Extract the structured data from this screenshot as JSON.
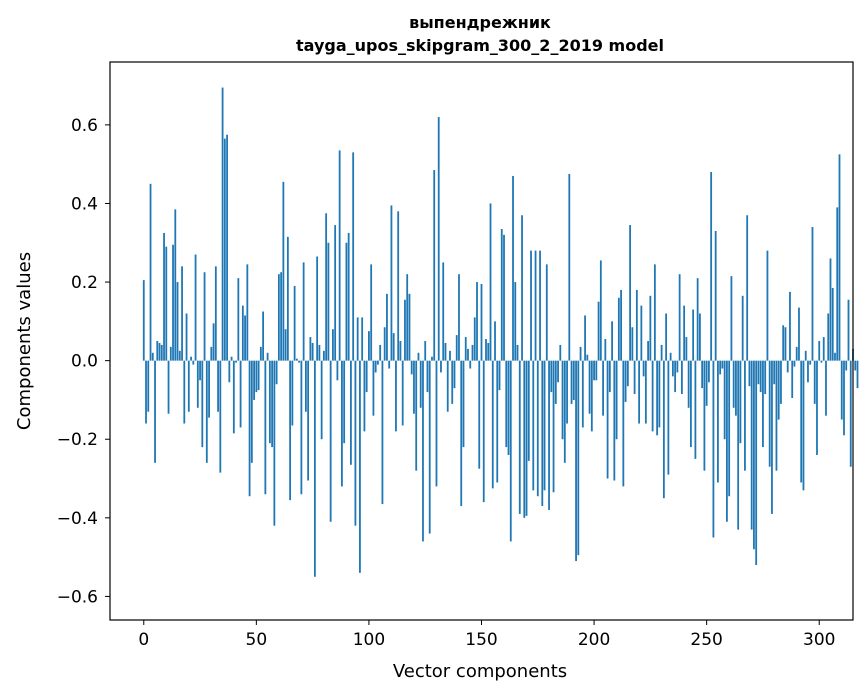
{
  "chart_data": {
    "type": "bar",
    "title_line1": "выпендрежник",
    "title_line2": "tayga_upos_skipgram_300_2_2019 model",
    "xlabel": "Vector components",
    "ylabel": "Components values",
    "xlim": [
      -15,
      315
    ],
    "ylim": [
      -0.66,
      0.76
    ],
    "xticks": [
      0,
      50,
      100,
      150,
      200,
      250,
      300
    ],
    "xtick_labels": [
      "0",
      "50",
      "100",
      "150",
      "200",
      "250",
      "300"
    ],
    "yticks": [
      -0.6,
      -0.4,
      -0.2,
      0.0,
      0.2,
      0.4,
      0.6
    ],
    "ytick_labels": [
      "−0.6",
      "−0.4",
      "−0.2",
      "0.0",
      "0.2",
      "0.4",
      "0.6"
    ],
    "bar_color": "#1f77b4",
    "values": [
      0.205,
      -0.16,
      -0.13,
      0.45,
      0.02,
      -0.26,
      0.05,
      0.045,
      0.04,
      0.325,
      0.29,
      -0.135,
      0.035,
      0.295,
      0.385,
      0.2,
      0.025,
      0.24,
      -0.16,
      0.12,
      -0.13,
      0.01,
      -0.01,
      0.27,
      -0.12,
      -0.05,
      -0.22,
      0.225,
      -0.26,
      -0.145,
      0.035,
      0.095,
      0.24,
      -0.13,
      -0.285,
      0.695,
      0.565,
      0.575,
      -0.055,
      0.01,
      -0.185,
      -0.005,
      0.21,
      -0.17,
      0.14,
      0.115,
      0.245,
      -0.345,
      -0.26,
      -0.1,
      -0.08,
      -0.075,
      0.035,
      0.125,
      -0.34,
      0.02,
      -0.21,
      -0.22,
      -0.42,
      -0.06,
      0.22,
      0.225,
      0.455,
      0.08,
      0.315,
      -0.355,
      -0.165,
      0.19,
      0.005,
      -0.005,
      -0.34,
      0.25,
      -0.13,
      -0.305,
      0.06,
      0.045,
      -0.55,
      0.265,
      0.04,
      -0.2,
      0.025,
      0.375,
      0.3,
      -0.41,
      0.08,
      0.345,
      -0.05,
      0.535,
      -0.32,
      -0.21,
      0.3,
      0.325,
      -0.265,
      0.53,
      -0.42,
      0.11,
      -0.54,
      0.11,
      -0.18,
      -0.08,
      0.075,
      0.245,
      -0.14,
      -0.03,
      -0.01,
      0.04,
      -0.365,
      0.085,
      0.17,
      -0.02,
      0.395,
      0.07,
      -0.18,
      0.38,
      0.05,
      -0.165,
      0.155,
      0.22,
      0.17,
      -0.035,
      -0.135,
      -0.28,
      0.02,
      -0.12,
      -0.46,
      0.05,
      -0.08,
      -0.44,
      0.01,
      0.485,
      -0.32,
      0.62,
      -0.03,
      0.25,
      0.045,
      -0.13,
      0.025,
      -0.11,
      -0.07,
      0.065,
      0.22,
      -0.37,
      -0.22,
      0.06,
      0.03,
      -0.02,
      0.04,
      0.11,
      0.2,
      -0.275,
      0.195,
      -0.36,
      0.055,
      0.045,
      0.4,
      -0.325,
      0.1,
      -0.31,
      -0.075,
      0.335,
      0.32,
      -0.22,
      -0.24,
      -0.46,
      0.47,
      0.2,
      0.04,
      -0.39,
      0.37,
      -0.4,
      -0.395,
      -0.255,
      0.28,
      -0.33,
      0.28,
      -0.345,
      0.28,
      -0.37,
      -0.33,
      0.245,
      -0.38,
      -0.08,
      -0.335,
      -0.11,
      -0.055,
      0.04,
      -0.2,
      -0.26,
      -0.16,
      0.475,
      -0.11,
      -0.1,
      -0.51,
      -0.495,
      0.035,
      -0.17,
      0.115,
      0.015,
      -0.135,
      -0.18,
      -0.05,
      -0.05,
      0.15,
      0.255,
      -0.14,
      0.055,
      -0.3,
      -0.08,
      0.1,
      -0.305,
      -0.2,
      0.16,
      0.18,
      -0.32,
      -0.105,
      -0.065,
      0.345,
      0.085,
      -0.085,
      0.18,
      -0.16,
      0.14,
      -0.04,
      -0.16,
      0.05,
      0.165,
      -0.18,
      0.245,
      -0.19,
      -0.17,
      0.04,
      -0.35,
      0.12,
      -0.29,
      0.02,
      -0.04,
      -0.08,
      -0.03,
      0.22,
      -0.085,
      0.14,
      0.06,
      -0.12,
      -0.22,
      0.13,
      -0.25,
      0.21,
      0.12,
      -0.07,
      -0.28,
      -0.115,
      -0.055,
      0.48,
      -0.45,
      0.33,
      -0.31,
      -0.035,
      -0.02,
      -0.2,
      -0.41,
      -0.345,
      0.215,
      -0.12,
      -0.14,
      -0.43,
      -0.21,
      0.165,
      -0.28,
      0.37,
      -0.065,
      -0.43,
      -0.48,
      -0.52,
      -0.06,
      -0.08,
      -0.22,
      -0.085,
      0.28,
      -0.27,
      -0.39,
      -0.06,
      -0.28,
      -0.15,
      -0.11,
      0.09,
      0.085,
      -0.03,
      0.175,
      -0.095,
      -0.015,
      0.035,
      0.135,
      -0.31,
      -0.33,
      0.025,
      -0.055,
      -0.01,
      0.34,
      -0.11,
      -0.24,
      0.05,
      -0.005,
      0.06,
      -0.14,
      0.12,
      0.26,
      0.185,
      0.02,
      0.39,
      0.525,
      -0.15,
      -0.19,
      -0.025,
      0.155,
      -0.27,
      0.03,
      -0.025,
      -0.07
    ]
  }
}
